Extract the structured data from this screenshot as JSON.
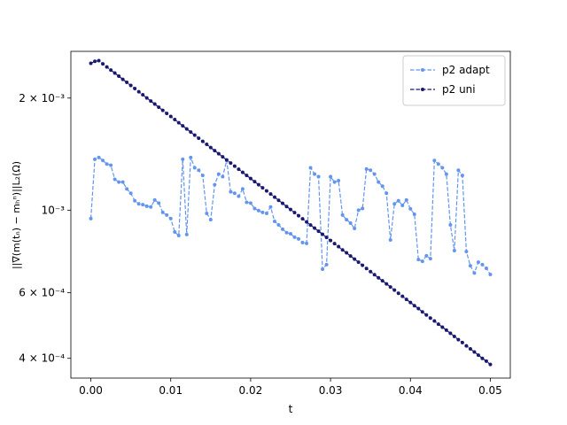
{
  "chart_data": {
    "type": "line",
    "log_y": true,
    "xlabel": "t",
    "ylabel": "||∇(m(tₙ) − mₕⁿ)||L₂(Ω)",
    "xlim": [
      -0.0025,
      0.0525
    ],
    "xticks": [
      {
        "value": 0,
        "label": "0.00"
      },
      0.01,
      0.02,
      0.03,
      0.04,
      0.05
    ],
    "ylim": [
      0.000354,
      0.00267
    ],
    "yticks": [
      {
        "value": 0.0004,
        "label": "4 × 10⁻⁴"
      },
      {
        "value": 0.0006,
        "label": "6 × 10⁻⁴"
      },
      {
        "value": 0.001,
        "label": "10⁻³"
      },
      {
        "value": 0.002,
        "label": "2 × 10⁻³"
      }
    ],
    "legend": "upper right",
    "x": [
      0,
      0.0005,
      0.001,
      0.0015,
      0.002,
      0.0025,
      0.003,
      0.0035,
      0.004,
      0.0045,
      0.005,
      0.0055,
      0.006,
      0.0065,
      0.007,
      0.0075,
      0.008,
      0.0085,
      0.009,
      0.0095,
      0.01,
      0.0105,
      0.011,
      0.0115,
      0.012,
      0.0125,
      0.013,
      0.0135,
      0.014,
      0.0145,
      0.015,
      0.0155,
      0.016,
      0.0165,
      0.017,
      0.0175,
      0.018,
      0.0185,
      0.019,
      0.0195,
      0.02,
      0.0205,
      0.021,
      0.0215,
      0.022,
      0.0225,
      0.023,
      0.0235,
      0.024,
      0.0245,
      0.025,
      0.0255,
      0.026,
      0.0265,
      0.027,
      0.0275,
      0.028,
      0.0285,
      0.029,
      0.0295,
      0.03,
      0.0305,
      0.031,
      0.0315,
      0.032,
      0.0325,
      0.033,
      0.0335,
      0.034,
      0.0345,
      0.035,
      0.0355,
      0.036,
      0.0365,
      0.037,
      0.0375,
      0.038,
      0.0385,
      0.039,
      0.0395,
      0.04,
      0.0405,
      0.041,
      0.0415,
      0.042,
      0.0425,
      0.043,
      0.0435,
      0.044,
      0.0445,
      0.045,
      0.0455,
      0.046,
      0.0465,
      0.047,
      0.0475,
      0.048,
      0.0485,
      0.049,
      0.0495,
      0.05
    ],
    "series": [
      {
        "name": "p2 adapt",
        "color": "#6495ed",
        "values": [
          0.000949,
          0.00137,
          0.001385,
          0.00136,
          0.00133,
          0.00132,
          0.00121,
          0.00119,
          0.00119,
          0.00114,
          0.00111,
          0.00106,
          0.00104,
          0.001035,
          0.001025,
          0.00102,
          0.001065,
          0.001045,
          0.000986,
          0.00097,
          0.000949,
          0.000874,
          0.000855,
          0.00137,
          0.00086,
          0.001385,
          0.0013,
          0.00128,
          0.00124,
          0.00098,
          0.000943,
          0.00117,
          0.00125,
          0.00123,
          0.00136,
          0.00112,
          0.00111,
          0.00109,
          0.00114,
          0.00105,
          0.001045,
          0.00101,
          0.000997,
          0.000986,
          0.00098,
          0.00102,
          0.000933,
          0.000913,
          0.000889,
          0.00087,
          0.000864,
          0.000846,
          0.000837,
          0.000818,
          0.000814,
          0.0013,
          0.00125,
          0.00123,
          0.000694,
          0.000714,
          0.00123,
          0.00119,
          0.0012,
          0.00097,
          0.000943,
          0.000923,
          0.000893,
          0.001,
          0.00101,
          0.00129,
          0.00128,
          0.00125,
          0.00119,
          0.00116,
          0.00111,
          0.000832,
          0.00104,
          0.00106,
          0.00103,
          0.001065,
          0.001008,
          0.000975,
          0.000737,
          0.000729,
          0.000754,
          0.000741,
          0.00136,
          0.00133,
          0.0013,
          0.00125,
          0.000913,
          0.000779,
          0.00128,
          0.00124,
          0.000774,
          0.000709,
          0.000678,
          0.000725,
          0.000714,
          0.000698,
          0.000672
        ]
      },
      {
        "name": "p2 uni",
        "color": "#191970",
        "values": [
          0.00248,
          0.00251,
          0.00252,
          0.002472,
          0.002425,
          0.002379,
          0.002334,
          0.00229,
          0.002246,
          0.002204,
          0.002162,
          0.002121,
          0.00208,
          0.002041,
          0.002002,
          0.001964,
          0.001927,
          0.00189,
          0.001854,
          0.001819,
          0.001785,
          0.001751,
          0.001717,
          0.001685,
          0.001653,
          0.001621,
          0.00159,
          0.00156,
          0.001531,
          0.001502,
          0.001473,
          0.001445,
          0.001418,
          0.001391,
          0.001364,
          0.001338,
          0.001313,
          0.001288,
          0.001264,
          0.00124,
          0.001216,
          0.001193,
          0.00117,
          0.001148,
          0.001126,
          0.001105,
          0.001084,
          0.001063,
          0.001043,
          0.001023,
          0.001004,
          0.000985,
          0.000966,
          0.000948,
          0.00093,
          0.000912,
          0.000895,
          0.000878,
          0.000861,
          0.000845,
          0.000829,
          0.000813,
          0.000798,
          0.000782,
          0.000768,
          0.000753,
          0.000739,
          0.000725,
          0.000711,
          0.000697,
          0.000684,
          0.000671,
          0.000658,
          0.000646,
          0.000634,
          0.000622,
          0.00061,
          0.000598,
          0.000587,
          0.000576,
          0.000565,
          0.000554,
          0.000544,
          0.000533,
          0.000523,
          0.000513,
          0.000504,
          0.000494,
          0.000485,
          0.000476,
          0.000467,
          0.000458,
          0.000449,
          0.000441,
          0.000432,
          0.000424,
          0.000416,
          0.000408,
          0.0004,
          0.000393,
          0.000385
        ]
      }
    ]
  }
}
